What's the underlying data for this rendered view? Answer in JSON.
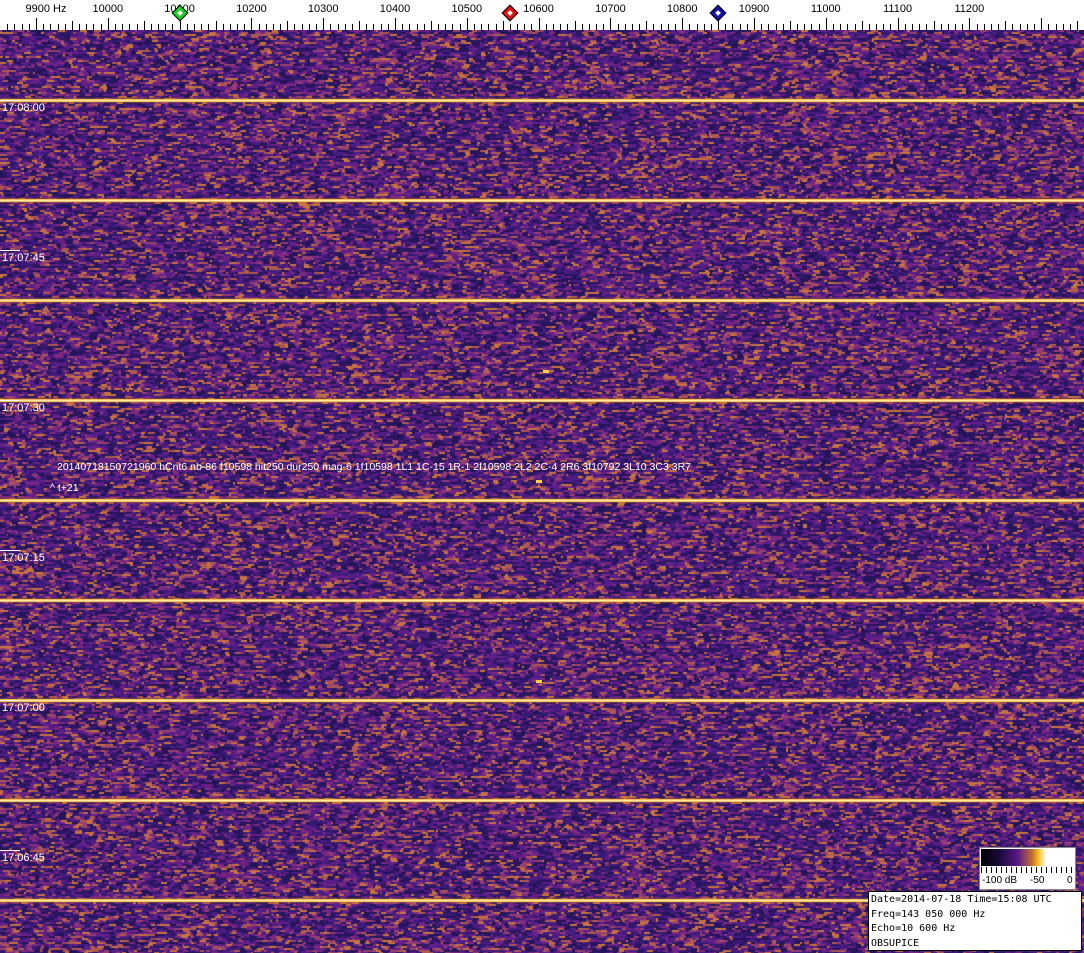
{
  "chart_data": {
    "type": "heatmap",
    "x_unit_label": "Hz",
    "x_ticks": [
      9900,
      10000,
      10100,
      10200,
      10300,
      10400,
      10500,
      10600,
      10700,
      10800,
      10900,
      11000,
      11100,
      11200
    ],
    "x_tick_labels": [
      "9900 Hz",
      "10000",
      "10100",
      "10200",
      "10300",
      "10400",
      "10500",
      "10600",
      "10700",
      "10800",
      "10900",
      "11000",
      "11100",
      "11200"
    ],
    "xlim": [
      9850,
      11360
    ],
    "y_tick_labels": [
      "17:08:00",
      "17:07:45",
      "17:07:30",
      "17:07:15",
      "17:07:00",
      "17:06:45"
    ],
    "y_tick_seconds": [
      480,
      465,
      450,
      435,
      420,
      405
    ],
    "ylim_seconds": [
      479,
      387
    ],
    "bright_line_times_seconds": [
      480,
      470,
      460,
      450,
      440,
      430,
      420,
      410,
      400
    ],
    "markers": [
      {
        "color": "#22cc22",
        "freq": 10100
      },
      {
        "color": "#dd1111",
        "freq": 10560
      },
      {
        "color": "#1111aa",
        "freq": 10850
      }
    ],
    "echo_blips": [
      {
        "freq": 10600,
        "time_seconds": 442
      },
      {
        "freq": 10600,
        "time_seconds": 422
      },
      {
        "freq": 10610,
        "time_seconds": 453
      }
    ],
    "colorbar": {
      "labels": [
        "-100 dB",
        "-50",
        "0"
      ],
      "range_db": [
        -100,
        0
      ]
    },
    "palette": {
      "low": "#2a1660",
      "mid": "#6a1e8a",
      "high": "#d06a30",
      "peak": "#fff6b0"
    }
  },
  "annotation": {
    "detection": "20140718150721960 hCnt6 nb-86 f10598 hit250 dur250 mag-6 1f10598 1L1 1C-15 1R-1 2f10598 2L2 2C-4 2R6 3f10792 3L10 3C3 3R7",
    "offset": "^ t+21"
  },
  "info": {
    "line1": "Date=2014-07-18 Time=15:08 UTC",
    "line2": "Freq=143 050 000 Hz",
    "line3": "Echo=10 600 Hz",
    "line4": "OBSUPICE"
  }
}
